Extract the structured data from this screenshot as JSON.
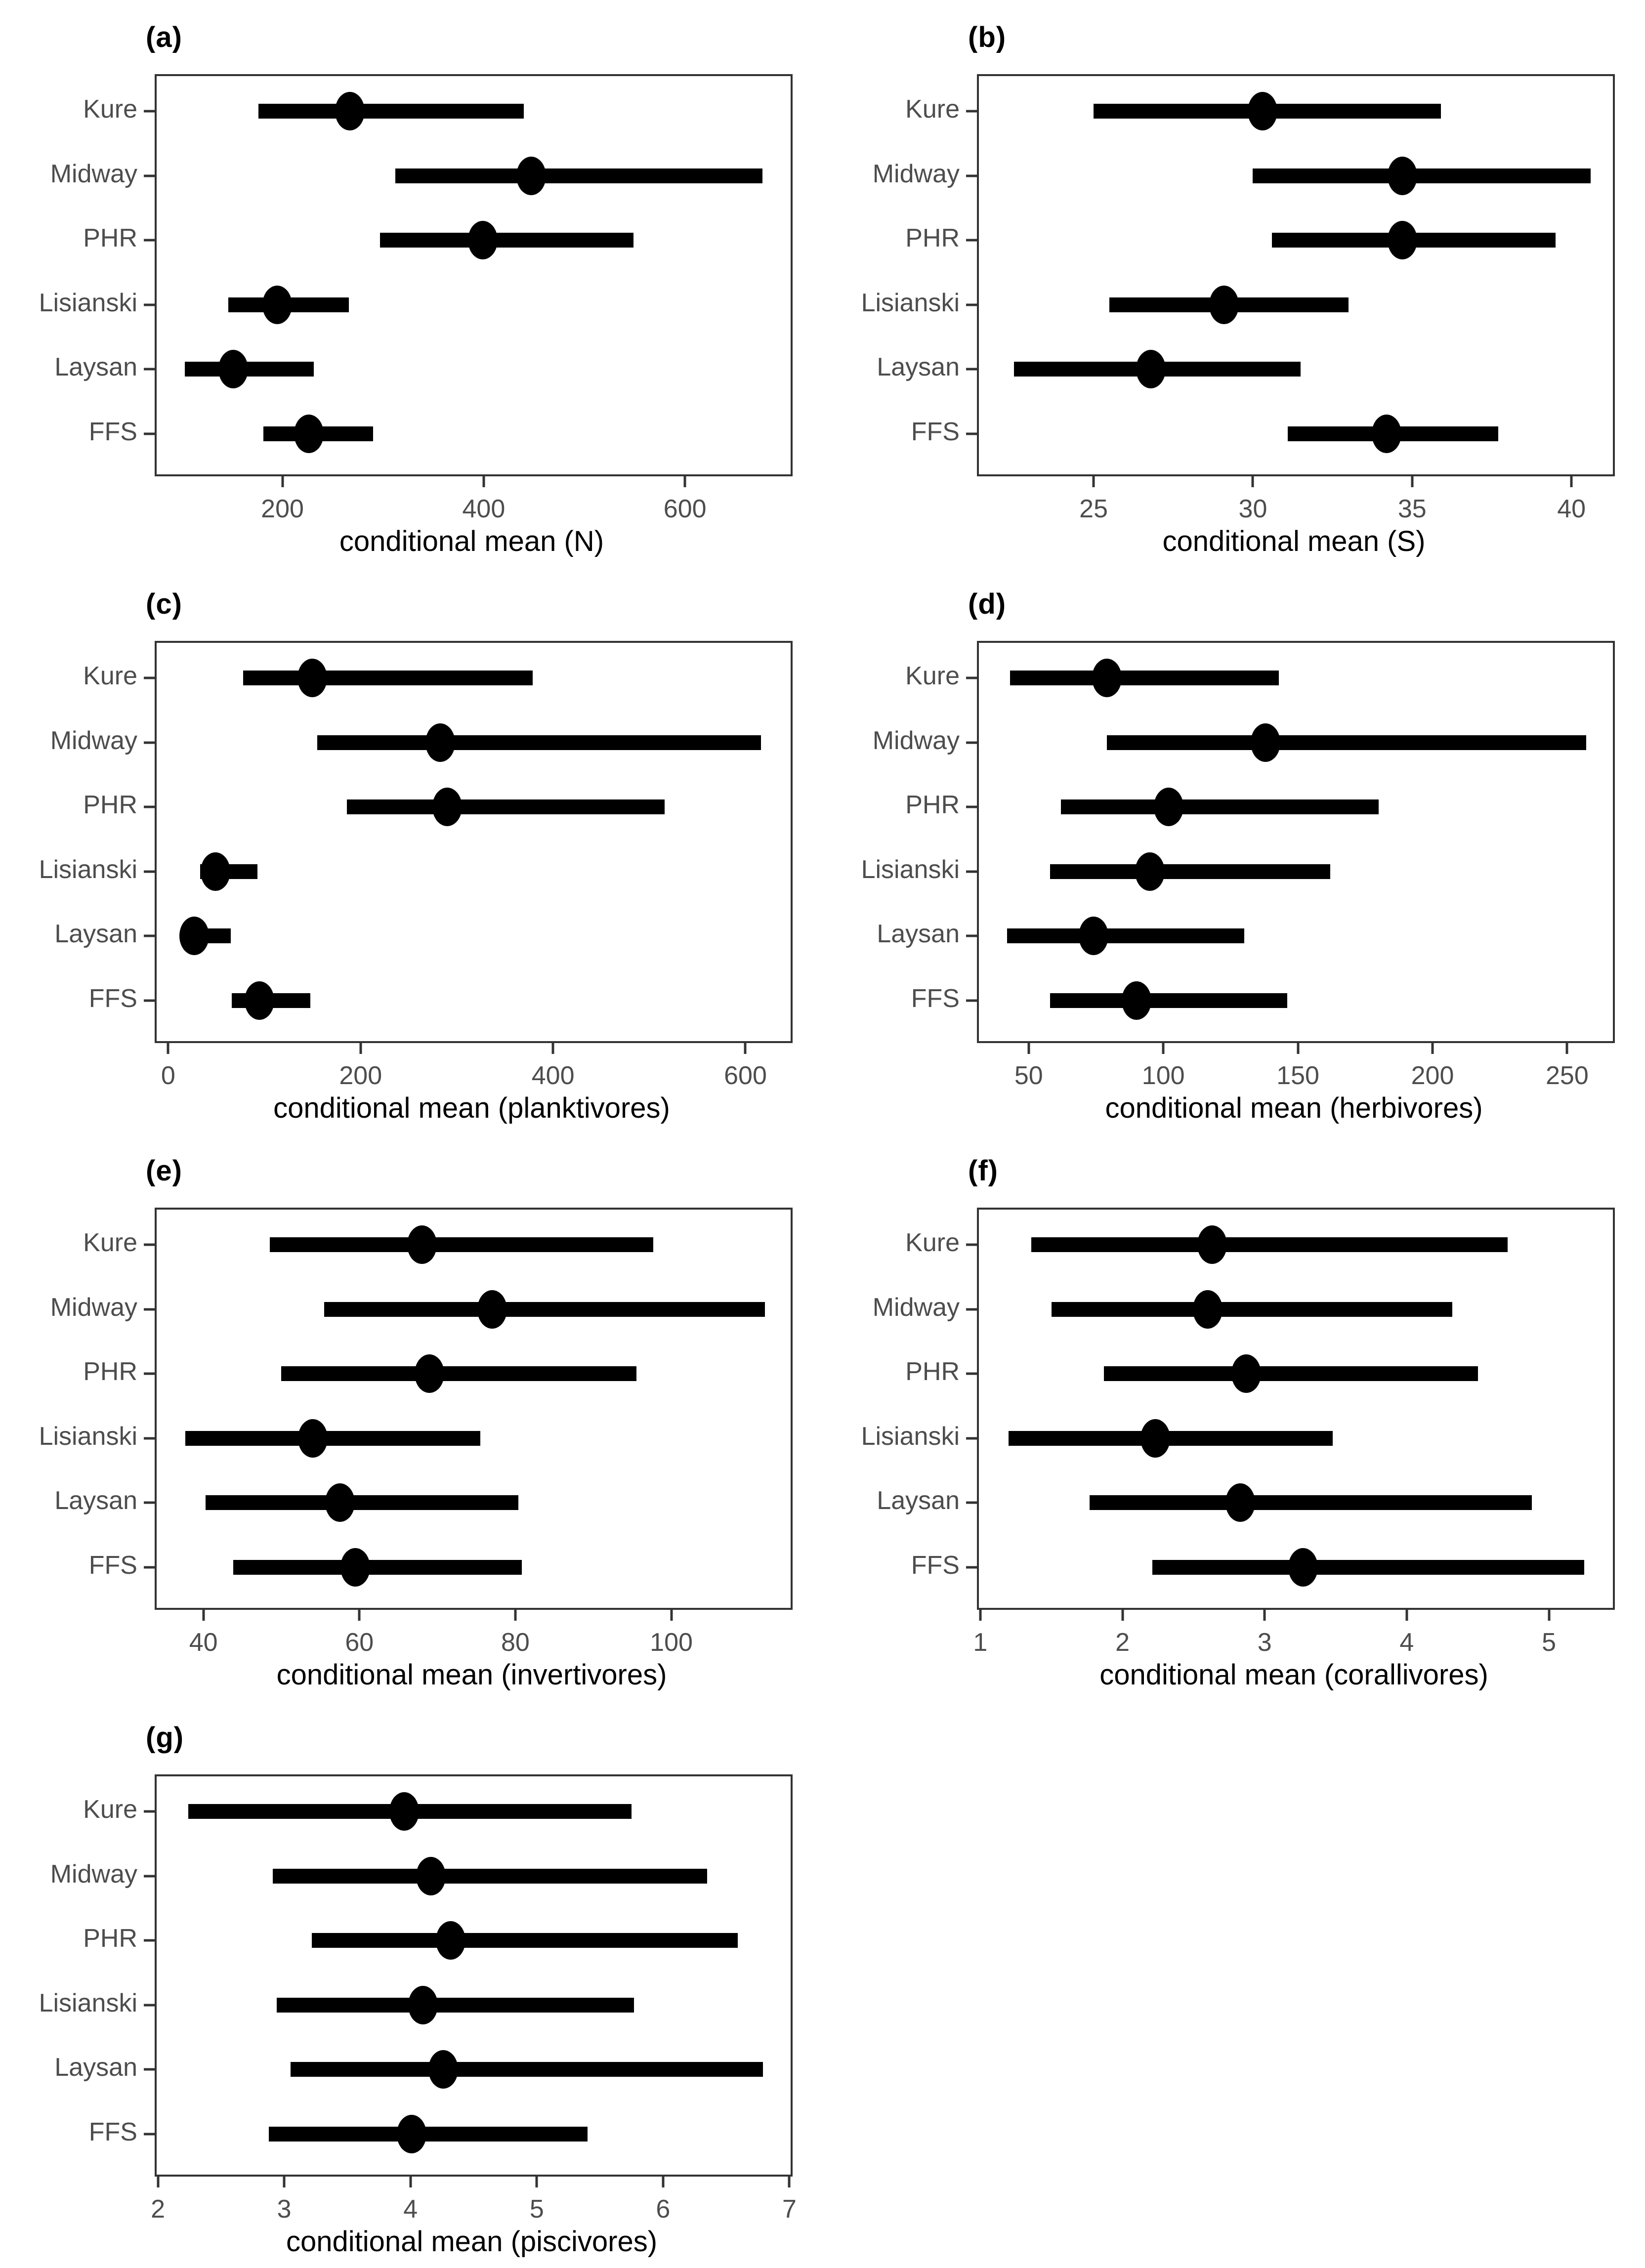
{
  "figure": {
    "background": "#ffffff",
    "panel_border_color": "#333333",
    "point_color": "#000000",
    "bar_color": "#000000",
    "axis_text_color": "#4d4d4d",
    "title_text_color": "#000000",
    "categories_top_to_bottom": [
      "Kure",
      "Midway",
      "PHR",
      "Lisianski",
      "Laysan",
      "FFS"
    ]
  },
  "chart_data": [
    {
      "type": "pointrange",
      "orientation": "horizontal",
      "label": "(a)",
      "xlabel": "conditional mean (N)",
      "xticks": [
        200,
        400,
        600
      ],
      "xlim": [
        75,
        705
      ],
      "grid": false,
      "points": [
        {
          "site": "Kure",
          "mean": 267,
          "lower": 176,
          "upper": 440
        },
        {
          "site": "Midway",
          "mean": 447,
          "lower": 312,
          "upper": 677
        },
        {
          "site": "PHR",
          "mean": 399,
          "lower": 297,
          "upper": 549
        },
        {
          "site": "Lisianski",
          "mean": 195,
          "lower": 146,
          "upper": 266
        },
        {
          "site": "Laysan",
          "mean": 151,
          "lower": 103,
          "upper": 231
        },
        {
          "site": "FFS",
          "mean": 226,
          "lower": 181,
          "upper": 290
        }
      ]
    },
    {
      "type": "pointrange",
      "orientation": "horizontal",
      "label": "(b)",
      "xlabel": "conditional mean (S)",
      "xticks": [
        25,
        30,
        35,
        40
      ],
      "xlim": [
        21.4,
        41.3
      ],
      "grid": false,
      "points": [
        {
          "site": "Kure",
          "mean": 30.3,
          "lower": 25.0,
          "upper": 35.9
        },
        {
          "site": "Midway",
          "mean": 34.7,
          "lower": 30.0,
          "upper": 40.6
        },
        {
          "site": "PHR",
          "mean": 34.7,
          "lower": 30.6,
          "upper": 39.5
        },
        {
          "site": "Lisianski",
          "mean": 29.1,
          "lower": 25.5,
          "upper": 33.0
        },
        {
          "site": "Laysan",
          "mean": 26.8,
          "lower": 22.5,
          "upper": 31.5
        },
        {
          "site": "FFS",
          "mean": 34.2,
          "lower": 31.1,
          "upper": 37.7
        }
      ]
    },
    {
      "type": "pointrange",
      "orientation": "horizontal",
      "label": "(c)",
      "xlabel": "conditional mean (planktivores)",
      "xticks": [
        0,
        200,
        400,
        600
      ],
      "xlim": [
        -12,
        647
      ],
      "grid": false,
      "points": [
        {
          "site": "Kure",
          "mean": 150,
          "lower": 78,
          "upper": 379
        },
        {
          "site": "Midway",
          "mean": 283,
          "lower": 155,
          "upper": 616
        },
        {
          "site": "PHR",
          "mean": 290,
          "lower": 186,
          "upper": 516
        },
        {
          "site": "Lisianski",
          "mean": 49,
          "lower": 33,
          "upper": 93
        },
        {
          "site": "Laysan",
          "mean": 27,
          "lower": 16,
          "upper": 65
        },
        {
          "site": "FFS",
          "mean": 95,
          "lower": 66,
          "upper": 148
        }
      ]
    },
    {
      "type": "pointrange",
      "orientation": "horizontal",
      "label": "(d)",
      "xlabel": "conditional mean (herbivores)",
      "xticks": [
        50,
        100,
        150,
        200,
        250
      ],
      "xlim": [
        31.5,
        267
      ],
      "grid": false,
      "points": [
        {
          "site": "Kure",
          "mean": 79,
          "lower": 43,
          "upper": 143
        },
        {
          "site": "Midway",
          "mean": 138,
          "lower": 79,
          "upper": 257
        },
        {
          "site": "PHR",
          "mean": 102,
          "lower": 62,
          "upper": 180
        },
        {
          "site": "Lisianski",
          "mean": 95,
          "lower": 58,
          "upper": 162
        },
        {
          "site": "Laysan",
          "mean": 74,
          "lower": 42,
          "upper": 130
        },
        {
          "site": "FFS",
          "mean": 90,
          "lower": 58,
          "upper": 146
        }
      ]
    },
    {
      "type": "pointrange",
      "orientation": "horizontal",
      "label": "(e)",
      "xlabel": "conditional mean (invertivores)",
      "xticks": [
        40,
        60,
        80,
        100
      ],
      "xlim": [
        34,
        115.3
      ],
      "grid": false,
      "points": [
        {
          "site": "Kure",
          "mean": 68,
          "lower": 48.5,
          "upper": 97.7
        },
        {
          "site": "Midway",
          "mean": 77,
          "lower": 55.5,
          "upper": 112
        },
        {
          "site": "PHR",
          "mean": 69,
          "lower": 50,
          "upper": 95.5
        },
        {
          "site": "Lisianski",
          "mean": 54,
          "lower": 37.7,
          "upper": 75.5
        },
        {
          "site": "Laysan",
          "mean": 57.5,
          "lower": 40.3,
          "upper": 80.4
        },
        {
          "site": "FFS",
          "mean": 59.5,
          "lower": 43.8,
          "upper": 80.8
        }
      ]
    },
    {
      "type": "pointrange",
      "orientation": "horizontal",
      "label": "(f)",
      "xlabel": "conditional mean (corallivores)",
      "xticks": [
        1,
        2,
        3,
        4,
        5
      ],
      "xlim": [
        0.99,
        5.45
      ],
      "grid": false,
      "points": [
        {
          "site": "Kure",
          "mean": 2.63,
          "lower": 1.36,
          "upper": 4.71
        },
        {
          "site": "Midway",
          "mean": 2.6,
          "lower": 1.5,
          "upper": 4.32
        },
        {
          "site": "PHR",
          "mean": 2.87,
          "lower": 1.87,
          "upper": 4.5
        },
        {
          "site": "Lisianski",
          "mean": 2.23,
          "lower": 1.2,
          "upper": 3.48
        },
        {
          "site": "Laysan",
          "mean": 2.83,
          "lower": 1.77,
          "upper": 4.88
        },
        {
          "site": "FFS",
          "mean": 3.27,
          "lower": 2.21,
          "upper": 5.25
        }
      ]
    },
    {
      "type": "pointrange",
      "orientation": "horizontal",
      "label": "(g)",
      "xlabel": "conditional mean (piscivores)",
      "xticks": [
        2,
        3,
        4,
        5,
        6,
        7
      ],
      "xlim": [
        1.99,
        7.01
      ],
      "grid": false,
      "points": [
        {
          "site": "Kure",
          "mean": 3.95,
          "lower": 2.24,
          "upper": 5.75
        },
        {
          "site": "Midway",
          "mean": 4.16,
          "lower": 2.91,
          "upper": 6.35
        },
        {
          "site": "PHR",
          "mean": 4.32,
          "lower": 3.22,
          "upper": 6.59
        },
        {
          "site": "Lisianski",
          "mean": 4.1,
          "lower": 2.94,
          "upper": 5.77
        },
        {
          "site": "Laysan",
          "mean": 4.26,
          "lower": 3.05,
          "upper": 6.79
        },
        {
          "site": "FFS",
          "mean": 4.01,
          "lower": 2.88,
          "upper": 5.4
        }
      ]
    }
  ]
}
